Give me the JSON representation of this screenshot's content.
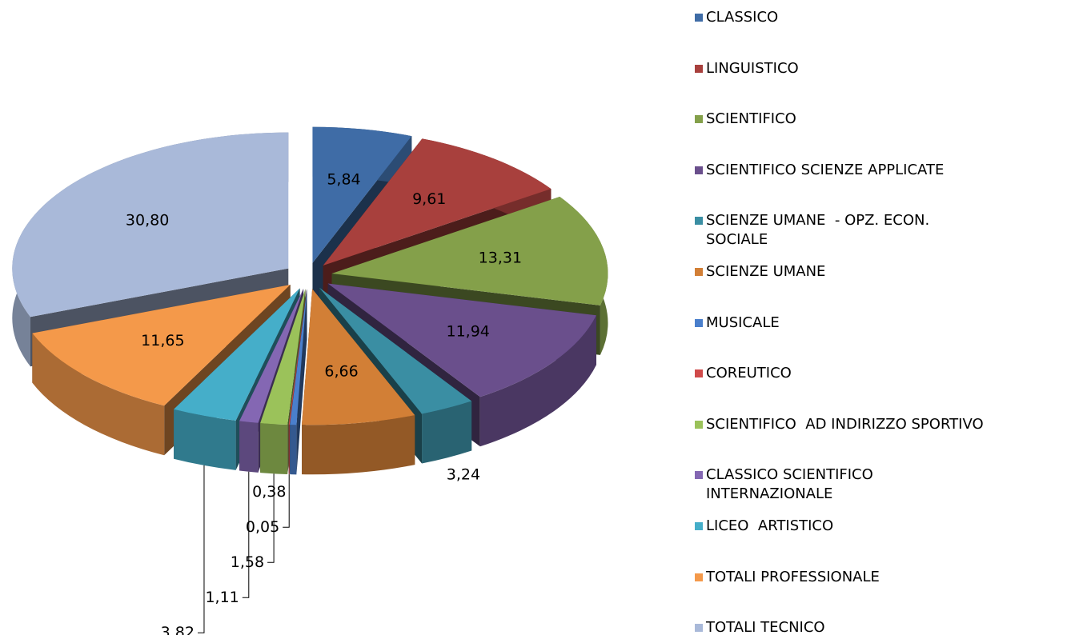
{
  "chart_data": {
    "type": "pie3d",
    "categories": [
      "CLASSICO",
      "LINGUISTICO",
      "SCIENTIFICO",
      "SCIENTIFICO SCIENZE APPLICATE",
      "SCIENZE UMANE  - OPZ. ECON. SOCIALE",
      "SCIENZE UMANE",
      "MUSICALE",
      "COREUTICO",
      "SCIENTIFICO  AD INDIRIZZO SPORTIVO",
      "CLASSICO SCIENTIFICO INTERNAZIONALE",
      "LICEO  ARTISTICO",
      "TOTALI PROFESSIONALE",
      "TOTALI TECNICO"
    ],
    "values": [
      5.84,
      9.61,
      13.31,
      11.94,
      3.24,
      6.66,
      0.38,
      0.05,
      1.58,
      1.11,
      3.82,
      11.65,
      30.8
    ],
    "value_labels": [
      "5,84",
      "9,61",
      "13,31",
      "11,94",
      "3,24",
      "6,66",
      "0,38",
      "0,05",
      "1,58",
      "1,11",
      "3,82",
      "11,65",
      "30,80"
    ],
    "colors": [
      "#3f6ca6",
      "#a8403d",
      "#84a04a",
      "#6a4f8c",
      "#3a8ea3",
      "#d27f36",
      "#4a7fcc",
      "#d04a4a",
      "#9bc25a",
      "#8467b3",
      "#45aec9",
      "#f4994a",
      "#a9b9d9"
    ],
    "legend": "right"
  }
}
